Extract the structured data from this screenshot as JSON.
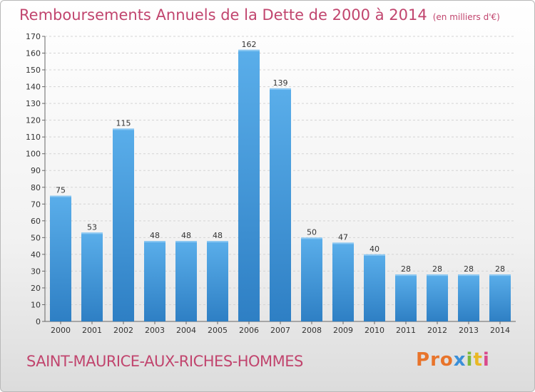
{
  "header": {
    "title": "Remboursements Annuels de la Dette de 2000 à 2014",
    "unit": "(en milliers d'€)"
  },
  "footer": {
    "commune": "SAINT-MAURICE-AUX-RICHES-HOMMES",
    "logo_letters": [
      "P",
      "r",
      "o",
      "x",
      "i",
      "t",
      "i"
    ],
    "logo_colors": [
      "#e8742b",
      "#e8742b",
      "#e8742b",
      "#3a8fd8",
      "#7dba3c",
      "#e9b825",
      "#d94a8c"
    ]
  },
  "colors": {
    "title": "#c1456e",
    "bar_top": "#5aaeea",
    "bar_bottom": "#2e7fc4",
    "grid": "#d4d4d4",
    "axis": "#666666"
  },
  "chart_data": {
    "type": "bar",
    "categories": [
      "2000",
      "2001",
      "2002",
      "2003",
      "2004",
      "2005",
      "2006",
      "2007",
      "2008",
      "2009",
      "2010",
      "2011",
      "2012",
      "2013",
      "2014"
    ],
    "values": [
      75,
      53,
      115,
      48,
      48,
      48,
      162,
      139,
      50,
      47,
      40,
      28,
      28,
      28,
      28
    ],
    "title": "Remboursements Annuels de la Dette de 2000 à 2014",
    "subtitle": "(en milliers d'€)",
    "xlabel": "",
    "ylabel": "",
    "ylim": [
      0,
      170
    ],
    "yticks": [
      0,
      10,
      20,
      30,
      40,
      50,
      60,
      70,
      80,
      90,
      100,
      110,
      120,
      130,
      140,
      150,
      160,
      170
    ],
    "grid": true,
    "data_labels": true
  }
}
